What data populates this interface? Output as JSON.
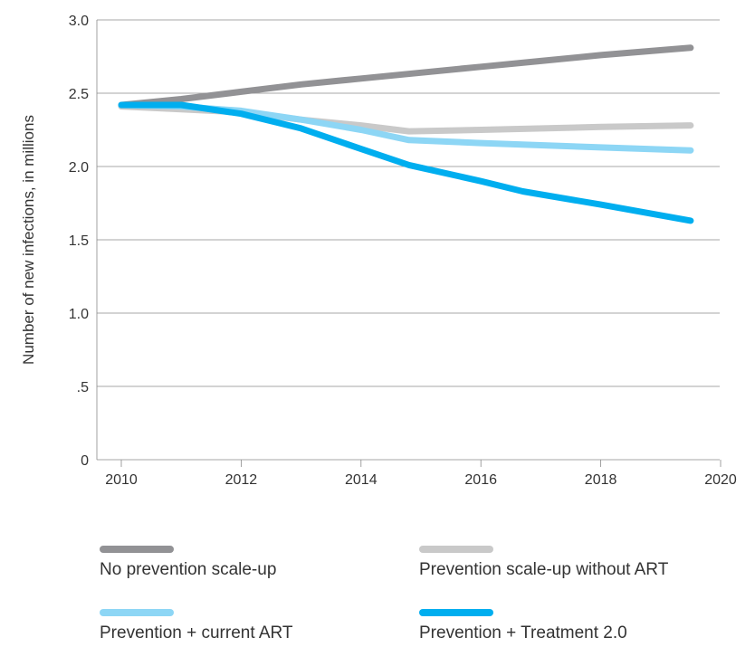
{
  "chart_data": {
    "type": "line",
    "title": "",
    "xlabel": "",
    "ylabel": "Number of new infections, in millions",
    "xlim": [
      2010,
      2020
    ],
    "ylim": [
      0,
      3.0
    ],
    "x_ticks": [
      "2010",
      "2012",
      "2014",
      "2016",
      "2018",
      "2020"
    ],
    "y_ticks": [
      "0",
      ".5",
      "1.0",
      "1.5",
      "2.0",
      "2.5",
      "3.0"
    ],
    "grid": "horizontal",
    "legend_position": "bottom",
    "series": [
      {
        "name": "No prevention scale-up",
        "color": "#929295",
        "x": [
          2010,
          2011,
          2012,
          2013,
          2014,
          2015,
          2016,
          2017,
          2018,
          2019.5
        ],
        "y": [
          2.42,
          2.46,
          2.51,
          2.56,
          2.6,
          2.64,
          2.68,
          2.72,
          2.76,
          2.81
        ]
      },
      {
        "name": "Prevention scale-up without ART",
        "color": "#c9c9c9",
        "x": [
          2010,
          2011,
          2012,
          2013,
          2014,
          2014.8,
          2016,
          2018,
          2019.5
        ],
        "y": [
          2.41,
          2.39,
          2.37,
          2.32,
          2.28,
          2.24,
          2.25,
          2.27,
          2.28
        ]
      },
      {
        "name": "Prevention + current ART",
        "color": "#8dd6f5",
        "x": [
          2010,
          2011,
          2012,
          2013,
          2014,
          2014.8,
          2016,
          2018,
          2019.5
        ],
        "y": [
          2.42,
          2.41,
          2.38,
          2.32,
          2.25,
          2.18,
          2.16,
          2.13,
          2.11
        ]
      },
      {
        "name": "Prevention + Treatment 2.0",
        "color": "#00aeef",
        "x": [
          2010,
          2011,
          2012,
          2013,
          2014,
          2014.8,
          2016,
          2016.7,
          2018,
          2019.5
        ],
        "y": [
          2.42,
          2.42,
          2.36,
          2.26,
          2.12,
          2.01,
          1.9,
          1.83,
          1.74,
          1.63
        ]
      }
    ]
  }
}
